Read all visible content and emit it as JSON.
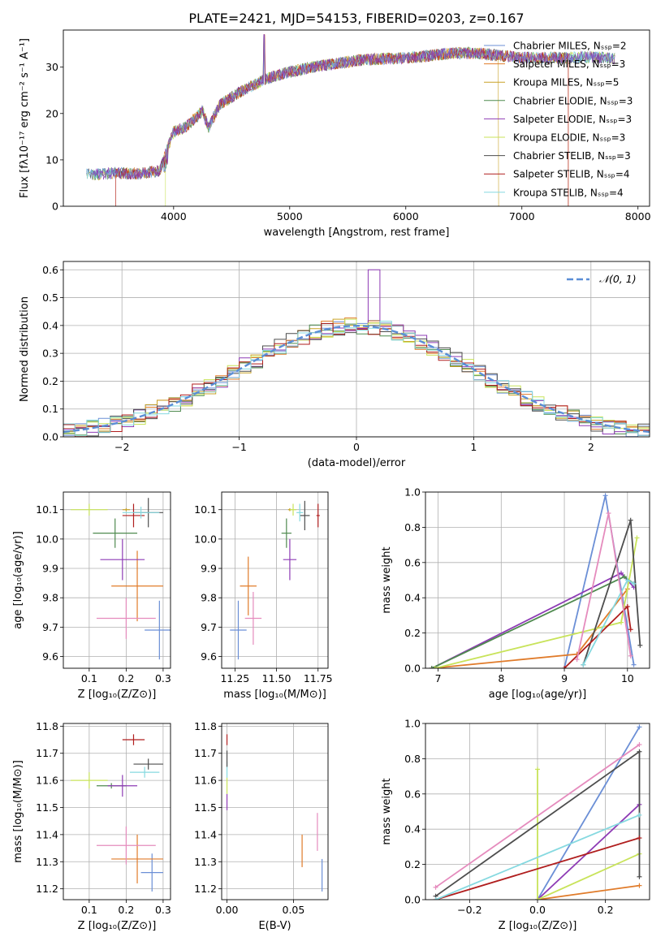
{
  "figure_title": "PLATE=2421, MJD=54153, FIBERID=0203, z=0.167",
  "model_colors": [
    "#6b8fd6",
    "#e07b2a",
    "#c9a227",
    "#4f8a4f",
    "#8e3bb5",
    "#c8e35a",
    "#4d4d4d",
    "#b01e1e",
    "#86d9e0"
  ],
  "chart_data": [
    {
      "id": "spectrum",
      "type": "line",
      "title": "PLATE=2421, MJD=54153, FIBERID=0203, z=0.167",
      "xlabel": "wavelength [Angstrom, rest frame]",
      "ylabel": "Flux [fλ10⁻¹⁷ erg cm⁻² s⁻¹ A⁻¹]",
      "xlim": [
        3050,
        8100
      ],
      "ylim": [
        0,
        38
      ],
      "xticks": [
        4000,
        5000,
        6000,
        7000,
        8000
      ],
      "yticks": [
        0,
        10,
        20,
        30
      ],
      "grid": false,
      "legend_position": "right",
      "legend": [
        {
          "name": "Chabrier MILES, Nₛₛₚ=2"
        },
        {
          "name": "Salpeter MILES, Nₛₛₚ=3"
        },
        {
          "name": "Kroupa MILES, Nₛₛₚ=5"
        },
        {
          "name": "Chabrier ELODIE, Nₛₛₚ=3"
        },
        {
          "name": "Salpeter ELODIE, Nₛₛₚ=3"
        },
        {
          "name": "Kroupa ELODIE, Nₛₛₚ=3"
        },
        {
          "name": "Chabrier STELIB, Nₛₛₚ=3"
        },
        {
          "name": "Salpeter STELIB, Nₛₛₚ=4"
        },
        {
          "name": "Kroupa STELIB, Nₛₛₚ=4"
        }
      ],
      "continuum": {
        "x": [
          3250,
          3500,
          3700,
          3880,
          3920,
          3960,
          4000,
          4100,
          4250,
          4300,
          4400,
          4600,
          4800,
          5000,
          5200,
          5400,
          5600,
          5800,
          6000,
          6200,
          6400,
          6600,
          6800,
          7000,
          7200,
          7400,
          7600,
          7800
        ],
        "y": [
          6.8,
          7.2,
          7.0,
          7.6,
          10.5,
          13.5,
          16.0,
          17.0,
          20.5,
          17.0,
          22.0,
          25.0,
          27.5,
          29.0,
          30.0,
          30.8,
          31.5,
          31.8,
          32.0,
          32.5,
          33.0,
          33.0,
          32.5,
          32.0,
          32.0,
          32.0,
          32.2,
          31.8
        ]
      }
    },
    {
      "id": "residual_histogram",
      "type": "area",
      "xlabel": "(data-model)/error",
      "ylabel": "Normed distribution",
      "xlim": [
        -2.5,
        2.5
      ],
      "ylim": [
        0,
        0.63
      ],
      "xticks": [
        -2,
        -1,
        0,
        1,
        2
      ],
      "yticks": [
        0.0,
        0.1,
        0.2,
        0.3,
        0.4,
        0.5,
        0.6
      ],
      "grid": true,
      "legend_position": "upper right",
      "legend": [
        {
          "name": "𝒩(0, 1)"
        }
      ],
      "bin_width": 0.1
    },
    {
      "id": "age_vs_Z",
      "type": "scatter",
      "xlabel": "Z [log₁₀(Z/Z⊙)]",
      "ylabel": "age  [log₁₀(age/yr)]",
      "xlim": [
        0.03,
        0.32
      ],
      "ylim": [
        9.56,
        10.16
      ],
      "xticks": [
        0.1,
        0.2,
        0.3
      ],
      "yticks": [
        9.6,
        9.7,
        9.8,
        9.9,
        10.0,
        10.1
      ],
      "grid": true,
      "points": [
        {
          "series": 0,
          "x": 0.29,
          "y": 9.69,
          "xerr": 0.04,
          "yerr": 0.1
        },
        {
          "series": 1,
          "x": 0.23,
          "y": 9.84,
          "xerr": 0.07,
          "yerr": 0.12
        },
        {
          "series": 2,
          "x": 0.2,
          "y": 10.1,
          "xerr": 0.01,
          "yerr": 0.005
        },
        {
          "series": 3,
          "x": 0.17,
          "y": 10.02,
          "xerr": 0.06,
          "yerr": 0.05
        },
        {
          "series": 4,
          "x": 0.19,
          "y": 9.93,
          "xerr": 0.06,
          "yerr": 0.07
        },
        {
          "series": 5,
          "x": 0.1,
          "y": 10.1,
          "xerr": 0.05,
          "yerr": 0.02
        },
        {
          "series": 6,
          "x": 0.26,
          "y": 10.09,
          "xerr": 0.04,
          "yerr": 0.05
        },
        {
          "series": 7,
          "x": 0.22,
          "y": 10.08,
          "xerr": 0.03,
          "yerr": 0.04
        },
        {
          "series": 9,
          "x": 0.2,
          "y": 9.73,
          "xerr": 0.08,
          "yerr": 0.07
        },
        {
          "series": 8,
          "x": 0.24,
          "y": 10.09,
          "xerr": 0.05,
          "yerr": 0.02
        }
      ]
    },
    {
      "id": "age_vs_mass",
      "type": "scatter",
      "xlabel": "mass [log₁₀(M/M⊙)]",
      "ylabel": "",
      "xlim": [
        11.17,
        11.81
      ],
      "ylim": [
        9.56,
        10.16
      ],
      "xticks": [
        11.25,
        11.5,
        11.75
      ],
      "yticks": [
        9.6,
        9.7,
        9.8,
        9.9,
        10.0,
        10.1
      ],
      "grid": true,
      "points": [
        {
          "series": 0,
          "x": 11.27,
          "y": 9.69,
          "xerr": 0.05,
          "yerr": 0.1
        },
        {
          "series": 1,
          "x": 11.33,
          "y": 9.84,
          "xerr": 0.05,
          "yerr": 0.1
        },
        {
          "series": 2,
          "x": 11.58,
          "y": 10.1,
          "xerr": 0.01,
          "yerr": 0.005
        },
        {
          "series": 3,
          "x": 11.56,
          "y": 10.02,
          "xerr": 0.03,
          "yerr": 0.05
        },
        {
          "series": 4,
          "x": 11.58,
          "y": 9.93,
          "xerr": 0.04,
          "yerr": 0.07
        },
        {
          "series": 5,
          "x": 11.6,
          "y": 10.1,
          "xerr": 0.02,
          "yerr": 0.02
        },
        {
          "series": 6,
          "x": 11.67,
          "y": 10.08,
          "xerr": 0.03,
          "yerr": 0.05
        },
        {
          "series": 7,
          "x": 11.75,
          "y": 10.08,
          "xerr": 0.01,
          "yerr": 0.04
        },
        {
          "series": 9,
          "x": 11.36,
          "y": 9.73,
          "xerr": 0.05,
          "yerr": 0.09
        },
        {
          "series": 8,
          "x": 11.64,
          "y": 10.09,
          "xerr": 0.02,
          "yerr": 0.03
        }
      ]
    },
    {
      "id": "mass_weight_vs_age",
      "type": "line",
      "xlabel": "age  [log₁₀(age/yr)]",
      "ylabel": "mass weight",
      "xlim": [
        6.8,
        10.35
      ],
      "ylim": [
        0,
        1.0
      ],
      "xticks": [
        7,
        8,
        9,
        10
      ],
      "yticks": [
        0.0,
        0.2,
        0.4,
        0.6,
        0.8,
        1.0
      ],
      "grid": true,
      "series": [
        {
          "series": 0,
          "x": [
            9.0,
            9.65,
            10.1
          ],
          "y": [
            0.0,
            0.98,
            0.02
          ]
        },
        {
          "series": 1,
          "x": [
            6.9,
            9.2,
            10.0
          ],
          "y": [
            0.0,
            0.08,
            0.45
          ]
        },
        {
          "series": 4,
          "x": [
            6.9,
            9.9,
            10.1
          ],
          "y": [
            0.0,
            0.54,
            0.46
          ]
        },
        {
          "series": 3,
          "x": [
            6.9,
            9.95,
            10.1
          ],
          "y": [
            0.0,
            0.52,
            0.48
          ]
        },
        {
          "series": 5,
          "x": [
            6.95,
            9.9,
            10.15
          ],
          "y": [
            0.0,
            0.26,
            0.74
          ]
        },
        {
          "series": 6,
          "x": [
            9.3,
            10.05,
            10.2
          ],
          "y": [
            0.02,
            0.84,
            0.13
          ]
        },
        {
          "series": 7,
          "x": [
            9.0,
            10.0,
            10.05
          ],
          "y": [
            0.0,
            0.35,
            0.22
          ]
        },
        {
          "series": 8,
          "x": [
            9.3,
            10.0,
            10.1
          ],
          "y": [
            0.02,
            0.5,
            0.48
          ]
        },
        {
          "series": 9,
          "x": [
            9.2,
            9.7,
            10.05
          ],
          "y": [
            0.05,
            0.88,
            0.07
          ]
        }
      ]
    },
    {
      "id": "mass_vs_Z",
      "type": "scatter",
      "xlabel": "Z [log₁₀(Z/Z⊙)]",
      "ylabel": "mass [log₁₀(M/M⊙)]",
      "xlim": [
        0.03,
        0.32
      ],
      "ylim": [
        11.16,
        11.81
      ],
      "xticks": [
        0.1,
        0.2,
        0.3
      ],
      "yticks": [
        11.2,
        11.3,
        11.4,
        11.5,
        11.6,
        11.7,
        11.8
      ],
      "grid": true,
      "points": [
        {
          "series": 0,
          "x": 0.27,
          "y": 11.26,
          "xerr": 0.03,
          "yerr": 0.07
        },
        {
          "series": 1,
          "x": 0.23,
          "y": 11.31,
          "xerr": 0.07,
          "yerr": 0.09
        },
        {
          "series": 3,
          "x": 0.16,
          "y": 11.58,
          "xerr": 0.04,
          "yerr": 0.01
        },
        {
          "series": 4,
          "x": 0.19,
          "y": 11.58,
          "xerr": 0.04,
          "yerr": 0.04
        },
        {
          "series": 5,
          "x": 0.1,
          "y": 11.6,
          "xerr": 0.05,
          "yerr": 0.03
        },
        {
          "series": 6,
          "x": 0.26,
          "y": 11.66,
          "xerr": 0.04,
          "yerr": 0.02
        },
        {
          "series": 7,
          "x": 0.22,
          "y": 11.75,
          "xerr": 0.03,
          "yerr": 0.02
        },
        {
          "series": 9,
          "x": 0.2,
          "y": 11.36,
          "xerr": 0.08,
          "yerr": 0.07
        },
        {
          "series": 8,
          "x": 0.25,
          "y": 11.63,
          "xerr": 0.04,
          "yerr": 0.02
        }
      ]
    },
    {
      "id": "mass_vs_ebv",
      "type": "scatter",
      "xlabel": "E(B-V)",
      "ylabel": "",
      "xlim": [
        -0.004,
        0.076
      ],
      "ylim": [
        11.16,
        11.81
      ],
      "xticks": [
        0.0,
        0.05
      ],
      "yticks": [
        11.2,
        11.3,
        11.4,
        11.5,
        11.6,
        11.7,
        11.8
      ],
      "grid": true,
      "points": [
        {
          "series": 0,
          "x": 0.0715,
          "y": 11.25,
          "yerr": 0.06
        },
        {
          "series": 1,
          "x": 0.0565,
          "y": 11.34,
          "yerr": 0.06
        },
        {
          "series": 9,
          "x": 0.068,
          "y": 11.41,
          "yerr": 0.07
        },
        {
          "series": 4,
          "x": 0.0,
          "y": 11.52,
          "yerr": 0.03
        },
        {
          "series": 5,
          "x": 0.0,
          "y": 11.58,
          "yerr": 0.03
        },
        {
          "series": 8,
          "x": 0.0,
          "y": 11.64,
          "yerr": 0.03
        },
        {
          "series": 6,
          "x": 0.0,
          "y": 11.68,
          "yerr": 0.03
        },
        {
          "series": 7,
          "x": 0.0,
          "y": 11.75,
          "yerr": 0.02
        }
      ]
    },
    {
      "id": "mass_weight_vs_Z",
      "type": "line",
      "xlabel": "Z [log₁₀(Z/Z⊙)]",
      "ylabel": "mass weight",
      "xlim": [
        -0.33,
        0.33
      ],
      "ylim": [
        0,
        1.0
      ],
      "xticks": [
        -0.2,
        0.0,
        0.2
      ],
      "yticks": [
        0.0,
        0.2,
        0.4,
        0.6,
        0.8,
        1.0
      ],
      "grid": true,
      "series": [
        {
          "series": 0,
          "x": [
            0.0,
            0.3
          ],
          "y": [
            0.0,
            0.98
          ]
        },
        {
          "series": 1,
          "x": [
            0.0,
            0.3
          ],
          "y": [
            0.0,
            0.08
          ]
        },
        {
          "series": 4,
          "x": [
            0.0,
            0.3
          ],
          "y": [
            0.0,
            0.54
          ]
        },
        {
          "series": 5,
          "x": [
            0.0,
            0.0,
            0.3
          ],
          "y": [
            0.74,
            0.0,
            0.26
          ]
        },
        {
          "series": 6,
          "x": [
            -0.3,
            0.3,
            0.3
          ],
          "y": [
            0.02,
            0.84,
            0.13
          ]
        },
        {
          "series": 7,
          "x": [
            -0.3,
            0.3
          ],
          "y": [
            0.0,
            0.35
          ]
        },
        {
          "series": 8,
          "x": [
            -0.3,
            0.3
          ],
          "y": [
            0.0,
            0.48
          ]
        },
        {
          "series": 9,
          "x": [
            -0.3,
            0.3
          ],
          "y": [
            0.07,
            0.88
          ]
        }
      ]
    }
  ]
}
